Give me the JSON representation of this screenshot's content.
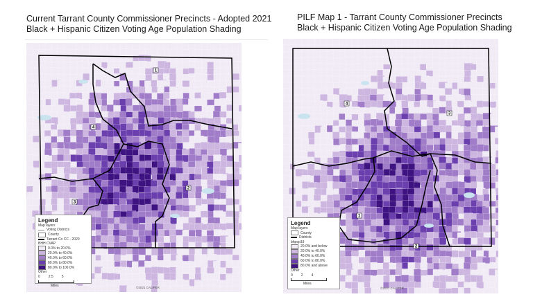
{
  "left_map": {
    "title_line1": "Current Tarrant County Commissioner Precincts - Adopted 2021",
    "title_line2": "Black + Hispanic Citizen Voting Age Population Shading",
    "precinct_labels": [
      "1",
      "2",
      "3",
      "4"
    ],
    "legend": {
      "title": "Legend",
      "layers_heading": "Map layers",
      "voting_districts": "Voting Districts",
      "county": "County",
      "precinct_layer": "Tarrant Co CC - 2020",
      "field": "BHH CVAP",
      "classes": [
        {
          "label": "0.0% to 20.0%",
          "color": "#f1ebf6"
        },
        {
          "label": "20.0% to 40.0%",
          "color": "#cdb7e0"
        },
        {
          "label": "40.0% to 60.0%",
          "color": "#a07cc9"
        },
        {
          "label": "60.0% to 80.0%",
          "color": "#6c3fae"
        },
        {
          "label": "80.0% to 100.0%",
          "color": "#3e1381"
        }
      ],
      "other": "Other",
      "scale_ticks": [
        "0",
        "2.5",
        "5"
      ],
      "scale_unit": "Miles"
    },
    "copyright": "©2021 CALIPER"
  },
  "right_map": {
    "title_line1": "PILF Map 1 - Tarrant County Commissioner Precincts",
    "title_line2": "Black + Hispanic Citizen Voting Age Population Shading",
    "precinct_labels": [
      "1",
      "2",
      "3",
      "4"
    ],
    "legend": {
      "title": "Legend",
      "layers_heading": "Map layers",
      "county": "County",
      "districts": "Districts",
      "field": "bhpop19",
      "classes": [
        {
          "label": "20.0% and below",
          "color": "#f1ebf6"
        },
        {
          "label": "20.0% to 40.0%",
          "color": "#cdb7e0"
        },
        {
          "label": "40.0% to 60.0%",
          "color": "#a07cc9"
        },
        {
          "label": "60.0% to 80.0%",
          "color": "#6c3fae"
        },
        {
          "label": "80.0% and above",
          "color": "#3e1381"
        }
      ],
      "other": "Other",
      "scale_ticks": [
        "0",
        "2",
        "4"
      ],
      "scale_unit": "Miles"
    },
    "copyright": "©2021 CALIPER"
  },
  "colors": {
    "water": "#c9e4ef",
    "boundary": "#000000",
    "shade_palette": [
      "#f1ebf6",
      "#cdb7e0",
      "#a07cc9",
      "#6c3fae",
      "#3e1381"
    ]
  }
}
